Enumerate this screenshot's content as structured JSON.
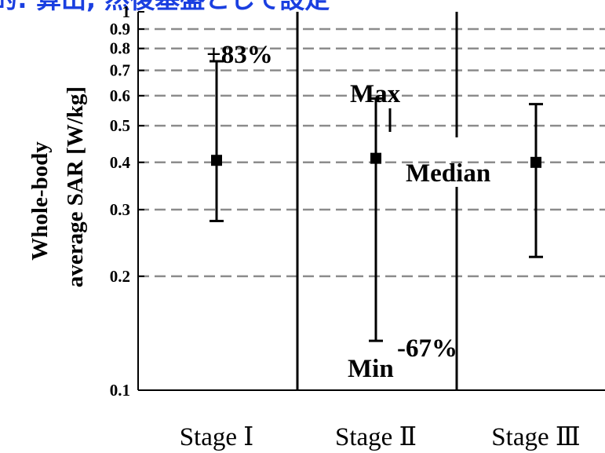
{
  "header": {
    "fragment": "的: 算出, 然後基盤として設定"
  },
  "chart_data": {
    "type": "errorbar",
    "title": "",
    "xlabel": "",
    "ylabel_line1": "Whole-body",
    "ylabel_line2": "average SAR [W/kg]",
    "y_scale": "log",
    "ylim": [
      0.1,
      1
    ],
    "y_ticks": [
      {
        "value": 0.1,
        "label": "0.1"
      },
      {
        "value": 0.2,
        "label": "0.2"
      },
      {
        "value": 0.3,
        "label": "0.3"
      },
      {
        "value": 0.4,
        "label": "0.4"
      },
      {
        "value": 0.5,
        "label": "0.5"
      },
      {
        "value": 0.6,
        "label": "0.6"
      },
      {
        "value": 0.7,
        "label": "0.7"
      },
      {
        "value": 0.8,
        "label": "0.8"
      },
      {
        "value": 0.9,
        "label": "0.9"
      },
      {
        "value": 1,
        "label": "1"
      }
    ],
    "grid_values": [
      0.2,
      0.3,
      0.4,
      0.5,
      0.6,
      0.7,
      0.8,
      0.9
    ],
    "categories": [
      "Stage Ⅰ",
      "Stage Ⅱ",
      "Stage Ⅲ"
    ],
    "points": [
      {
        "category": "Stage Ⅰ",
        "median": 0.405,
        "min": 0.28,
        "max": 0.74
      },
      {
        "category": "Stage Ⅱ",
        "median": 0.41,
        "min": 0.135,
        "max": 0.59
      },
      {
        "category": "Stage Ⅲ",
        "median": 0.4,
        "min": 0.225,
        "max": 0.57
      }
    ],
    "annotations": {
      "plus": "+83%",
      "max": "Max",
      "median": "Median",
      "min": "Min",
      "minus": "-67%"
    },
    "colors": {
      "line": "#000000",
      "grid": "#8c8c8c",
      "title": "#1a3fe0"
    }
  }
}
